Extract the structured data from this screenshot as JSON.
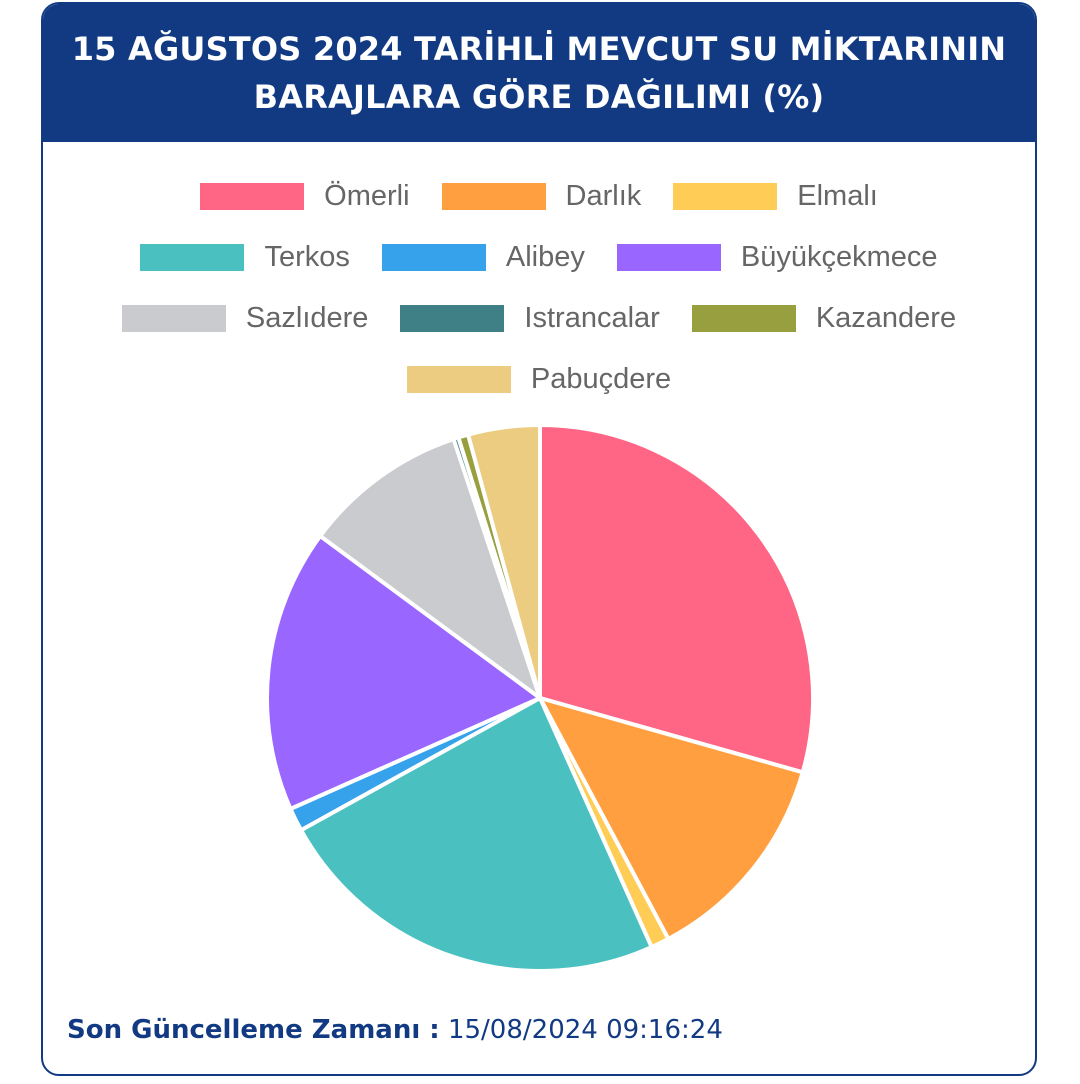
{
  "header": {
    "title_line1": "15 AĞUSTOS 2024 TARİHLİ MEVCUT SU MİKTARININ",
    "title_line2": "BARAJLARA GÖRE DAĞILIMI (%)"
  },
  "footer": {
    "label": "Son Güncelleme Zamanı :",
    "value": " 15/08/2024 09:16:24"
  },
  "chart_data": {
    "type": "pie",
    "title": "15 AĞUSTOS 2024 TARİHLİ MEVCUT SU MİKTARININ BARAJLARA GÖRE DAĞILIMI (%)",
    "legend_position": "top",
    "series": [
      {
        "name": "Ömerli",
        "value": 29.8,
        "color": "#ff6584"
      },
      {
        "name": "Darlık",
        "value": 13.0,
        "color": "#ff9f40"
      },
      {
        "name": "Elmalı",
        "value": 1.1,
        "color": "#ffcd56"
      },
      {
        "name": "Terkos",
        "value": 24.0,
        "color": "#4bc0c0"
      },
      {
        "name": "Alibey",
        "value": 1.4,
        "color": "#36a2eb"
      },
      {
        "name": "Büyükçekmece",
        "value": 17.0,
        "color": "#9966ff"
      },
      {
        "name": "Sazlıdere",
        "value": 9.9,
        "color": "#c9cbcf"
      },
      {
        "name": "Istrancalar",
        "value": 0.3,
        "color": "#3f7f86"
      },
      {
        "name": "Kazandere",
        "value": 0.6,
        "color": "#989f3f"
      },
      {
        "name": "Pabuçdere",
        "value": 4.3,
        "color": "#ebcc80"
      }
    ]
  }
}
